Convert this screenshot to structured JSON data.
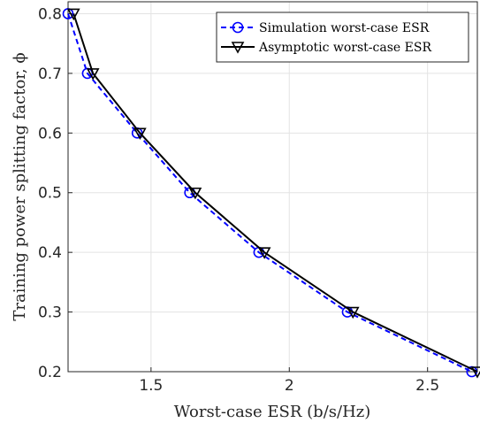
{
  "chart_data": {
    "type": "line",
    "title": "",
    "xlabel": "Worst-case ESR (b/s/Hz)",
    "ylabel": "Training power splitting factor, ϕ",
    "xlim": [
      1.2,
      2.68
    ],
    "ylim": [
      0.2,
      0.82
    ],
    "x_ticks": [
      1.5,
      2,
      2.5
    ],
    "x_tick_labels": [
      "1.5",
      "2",
      "2.5"
    ],
    "y_ticks": [
      0.2,
      0.3,
      0.4,
      0.5,
      0.6,
      0.7,
      0.8
    ],
    "y_tick_labels": [
      "0.2",
      "0.3",
      "0.4",
      "0.5",
      "0.6",
      "0.7",
      "0.8"
    ],
    "grid": true,
    "legend_position": "top-right",
    "series": [
      {
        "name": "Simulation worst-case ESR",
        "color": "#0000ff",
        "line_style": "dashed",
        "marker": "circle",
        "x": [
          1.2,
          1.27,
          1.45,
          1.64,
          1.89,
          2.21,
          2.66
        ],
        "y": [
          0.8,
          0.7,
          0.6,
          0.5,
          0.4,
          0.3,
          0.2
        ]
      },
      {
        "name": "Asymptotic worst-case ESR",
        "color": "#000000",
        "line_style": "solid",
        "marker": "triangle-down",
        "x": [
          1.22,
          1.29,
          1.46,
          1.66,
          1.91,
          2.23,
          2.68
        ],
        "y": [
          0.8,
          0.7,
          0.6,
          0.5,
          0.4,
          0.3,
          0.2
        ]
      }
    ]
  }
}
